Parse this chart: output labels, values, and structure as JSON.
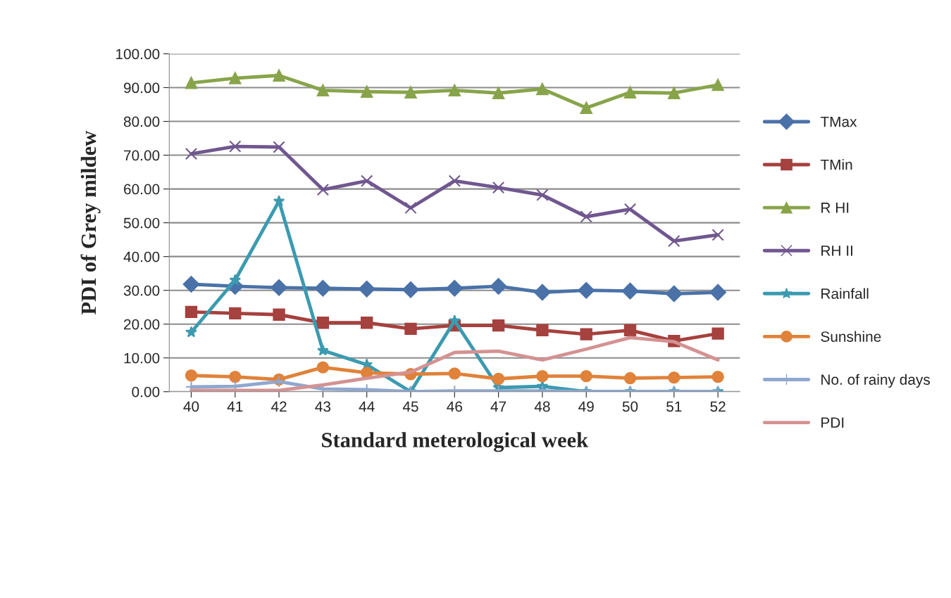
{
  "chart_data": {
    "type": "line",
    "xlabel": "Standard meterological week",
    "ylabel": "PDI of Grey mildew",
    "categories": [
      "40",
      "41",
      "42",
      "43",
      "44",
      "45",
      "46",
      "47",
      "48",
      "49",
      "50",
      "51",
      "52"
    ],
    "series": [
      {
        "name": "TMax",
        "color": "#4a72a8",
        "marker": "diamond",
        "values": [
          31.8,
          31.2,
          30.8,
          30.6,
          30.4,
          30.2,
          30.6,
          31.2,
          29.4,
          30.0,
          29.8,
          29.0,
          29.4
        ]
      },
      {
        "name": "TMin",
        "color": "#a5413e",
        "marker": "square",
        "values": [
          23.6,
          23.2,
          22.8,
          20.4,
          20.4,
          18.6,
          19.6,
          19.6,
          18.2,
          17.0,
          18.2,
          15.0,
          17.2
        ]
      },
      {
        "name": "R HI",
        "color": "#88a44a",
        "marker": "triangle",
        "values": [
          91.4,
          92.8,
          93.6,
          89.2,
          88.8,
          88.6,
          89.2,
          88.4,
          89.6,
          84.0,
          88.6,
          88.4,
          90.8
        ]
      },
      {
        "name": "RH II",
        "color": "#70578f",
        "marker": "cross",
        "values": [
          70.4,
          72.6,
          72.4,
          59.8,
          62.4,
          54.4,
          62.4,
          60.4,
          58.2,
          51.8,
          54.0,
          44.6,
          46.4
        ]
      },
      {
        "name": "Rainfall",
        "color": "#3c9ab0",
        "marker": "star",
        "values": [
          17.6,
          33.0,
          56.4,
          12.2,
          8.0,
          0,
          21.0,
          1.2,
          1.6,
          0,
          0,
          0,
          0
        ]
      },
      {
        "name": "Sunshine",
        "color": "#e0823a",
        "marker": "circle",
        "values": [
          4.8,
          4.4,
          3.6,
          7.2,
          5.6,
          5.2,
          5.4,
          3.8,
          4.6,
          4.6,
          4.0,
          4.2,
          4.4
        ]
      },
      {
        "name": "No. of rainy days",
        "color": "#8fa8d0",
        "marker": "plus",
        "values": [
          1.4,
          1.6,
          3.0,
          0.8,
          0.6,
          0,
          0.2,
          0.2,
          0.2,
          0,
          0,
          0,
          0
        ]
      },
      {
        "name": "PDI",
        "color": "#d49292",
        "marker": "none",
        "values": [
          0.4,
          0.4,
          0.4,
          2.0,
          4.0,
          5.8,
          11.6,
          12.0,
          9.4,
          12.6,
          16.0,
          14.8,
          9.4
        ]
      }
    ],
    "ylim": [
      0,
      100
    ],
    "yticks": [
      {
        "value": 0,
        "label": "0.00"
      },
      {
        "value": 10,
        "label": "10.00"
      },
      {
        "value": 20,
        "label": "20.00"
      },
      {
        "value": 30,
        "label": "30.00"
      },
      {
        "value": 40,
        "label": "40.00"
      },
      {
        "value": 50,
        "label": "50.00"
      },
      {
        "value": 60,
        "label": "60.00"
      },
      {
        "value": 70,
        "label": "70.00"
      },
      {
        "value": 80,
        "label": "80.00"
      },
      {
        "value": 90,
        "label": "90.00"
      },
      {
        "value": 100,
        "label": "100.00"
      }
    ],
    "grid": "y",
    "legend": "right",
    "line_style": "solid"
  }
}
